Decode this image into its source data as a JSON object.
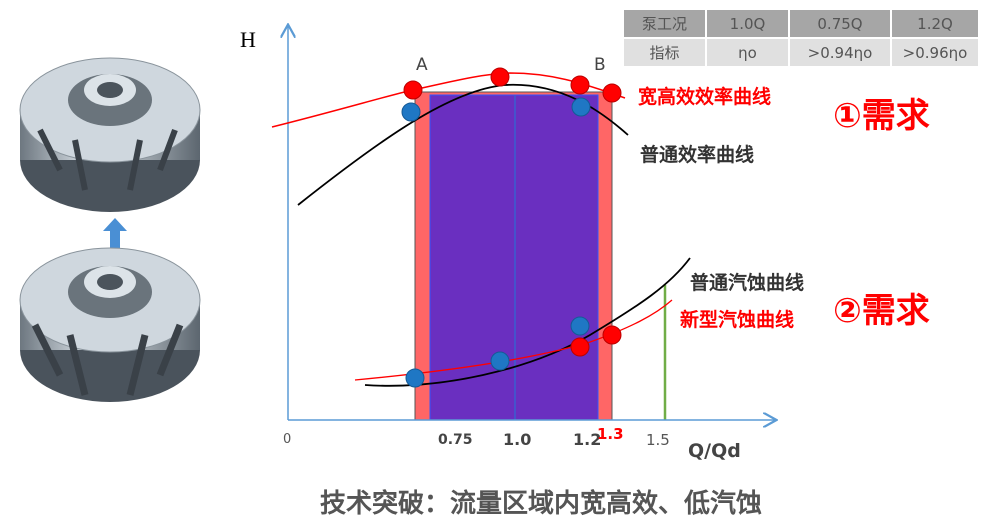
{
  "table": {
    "header": [
      "泵工况",
      "1.0Q",
      "0.75Q",
      "1.2Q"
    ],
    "row": [
      "指标",
      "ηo",
      ">0.94ηo",
      ">0.96ηo"
    ]
  },
  "axis": {
    "y_label": "H",
    "x_label": "Q/Qd",
    "ticks": [
      "0",
      "0.75",
      "1.0",
      "1.2",
      "1.3",
      "1.5"
    ]
  },
  "points": {
    "a": "A",
    "b": "B"
  },
  "curves": {
    "wide_eff": "宽高效效率曲线",
    "normal_eff": "普通效率曲线",
    "normal_cav": "普通汽蚀曲线",
    "new_cav": "新型汽蚀曲线"
  },
  "needs": {
    "one": "①需求",
    "two": "②需求"
  },
  "caption": "技术突破：流量区域内宽高效、低汽蚀",
  "colors": {
    "red": "#ff0000",
    "purple": "#6a2fc0",
    "salmon": "#ff6666",
    "blue_dot": "#1f77c4",
    "axis": "#5b9bd5",
    "green": "#70ad47"
  }
}
